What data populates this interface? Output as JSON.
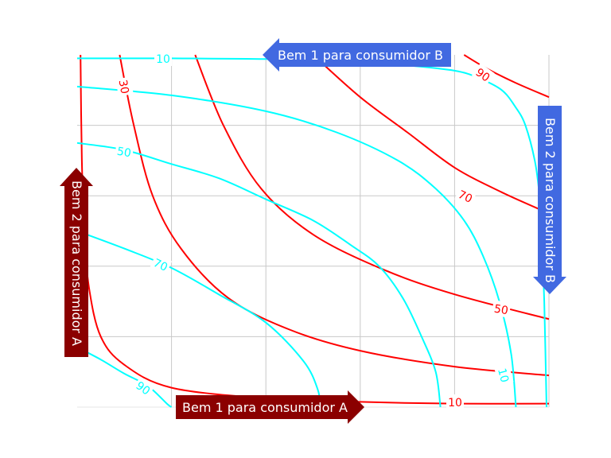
{
  "chart_data": {
    "type": "line",
    "title": "",
    "xlabel": "",
    "ylabel": "",
    "xlim": [
      0,
      10
    ],
    "ylim": [
      0,
      10
    ],
    "grid": true,
    "colors": {
      "consumer_a": "#ff0000",
      "consumer_b": "#00ffff",
      "arrow_a": "#8b0000",
      "arrow_b": "#4169e1",
      "grid": "#c8c8c8"
    },
    "consumer_a_curves": [
      {
        "label": "10",
        "points": [
          [
            0.07,
            10
          ],
          [
            0.1,
            7
          ],
          [
            0.15,
            5
          ],
          [
            0.25,
            3.4
          ],
          [
            0.5,
            2
          ],
          [
            1,
            1.2
          ],
          [
            2,
            0.55
          ],
          [
            4,
            0.25
          ],
          [
            6,
            0.15
          ],
          [
            8,
            0.1
          ],
          [
            10,
            0.1
          ]
        ]
      },
      {
        "label": "30",
        "points": [
          [
            0.9,
            10
          ],
          [
            1.2,
            8
          ],
          [
            1.6,
            6
          ],
          [
            2.2,
            4.5
          ],
          [
            3.2,
            3.1
          ],
          [
            4.5,
            2.2
          ],
          [
            6,
            1.6
          ],
          [
            8,
            1.15
          ],
          [
            10,
            0.9
          ]
        ]
      },
      {
        "label": "50",
        "points": [
          [
            2.5,
            10
          ],
          [
            3.1,
            8
          ],
          [
            3.9,
            6.2
          ],
          [
            5,
            4.9
          ],
          [
            6.5,
            3.9
          ],
          [
            8,
            3.2
          ],
          [
            10,
            2.5
          ]
        ]
      },
      {
        "label": "70",
        "points": [
          [
            5,
            10
          ],
          [
            6,
            8.8
          ],
          [
            7,
            7.8
          ],
          [
            8,
            6.8
          ],
          [
            9,
            6.1
          ],
          [
            10,
            5.5
          ]
        ]
      },
      {
        "label": "90",
        "points": [
          [
            8.2,
            10
          ],
          [
            8.7,
            9.6
          ],
          [
            9.3,
            9.2
          ],
          [
            10,
            8.8
          ]
        ]
      }
    ],
    "consumer_b_curves": [
      {
        "label": "10",
        "points": [
          [
            0,
            9.9
          ],
          [
            2,
            9.9
          ],
          [
            4,
            9.88
          ],
          [
            6,
            9.8
          ],
          [
            7,
            9.7
          ],
          [
            8,
            9.55
          ],
          [
            8.5,
            9.35
          ],
          [
            9,
            9
          ],
          [
            9.3,
            8.5
          ],
          [
            9.5,
            8
          ],
          [
            9.7,
            7
          ],
          [
            9.8,
            6
          ],
          [
            9.85,
            5
          ],
          [
            9.9,
            3
          ],
          [
            9.95,
            0
          ]
        ]
      },
      {
        "label": "",
        "points": [
          [
            0,
            9.1
          ],
          [
            2,
            8.85
          ],
          [
            4,
            8.4
          ],
          [
            5.5,
            7.8
          ],
          [
            6.8,
            7
          ],
          [
            7.6,
            6.2
          ],
          [
            8.2,
            5.3
          ],
          [
            8.6,
            4.3
          ],
          [
            8.95,
            3
          ],
          [
            9.2,
            1.5
          ],
          [
            9.3,
            0
          ]
        ]
      },
      {
        "label": "50",
        "points": [
          [
            0,
            7.5
          ],
          [
            1,
            7.3
          ],
          [
            2,
            6.9
          ],
          [
            3,
            6.5
          ],
          [
            4,
            5.9
          ],
          [
            5,
            5.3
          ],
          [
            5.8,
            4.6
          ],
          [
            6.4,
            4
          ],
          [
            6.9,
            3.1
          ],
          [
            7.3,
            2
          ],
          [
            7.6,
            1
          ],
          [
            7.7,
            0
          ]
        ]
      },
      {
        "label": "70",
        "points": [
          [
            0,
            5
          ],
          [
            1,
            4.5
          ],
          [
            2,
            3.95
          ],
          [
            3,
            3.2
          ],
          [
            4,
            2.4
          ],
          [
            4.8,
            1.3
          ],
          [
            5.1,
            0.5
          ],
          [
            5.15,
            0
          ]
        ]
      },
      {
        "label": "90",
        "points": [
          [
            0,
            1.7
          ],
          [
            0.5,
            1.35
          ],
          [
            1,
            0.95
          ],
          [
            1.5,
            0.6
          ],
          [
            1.9,
            0.1
          ],
          [
            2,
            0
          ]
        ]
      }
    ],
    "annotations": {
      "good1_consumer_a": "Bem 1 para consumidor A",
      "good2_consumer_a": "Bem 2 para consumidor A",
      "good1_consumer_b": "Bem 1 para consumidor B",
      "good2_consumer_b": "Bem 2 para consumidor B"
    }
  }
}
